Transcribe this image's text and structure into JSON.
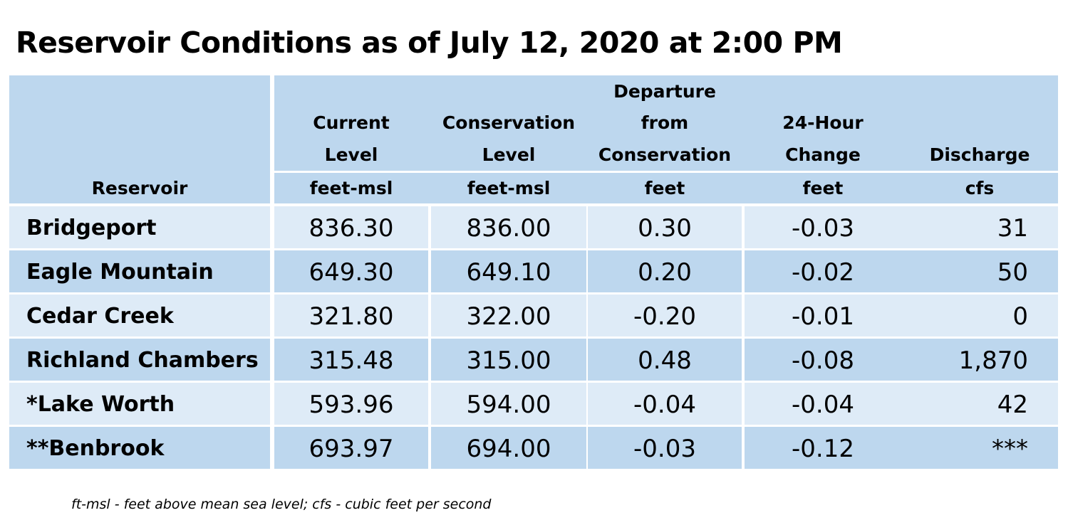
{
  "title": "Reservoir Conditions as of July 12, 2020 at 2:00 PM",
  "table": {
    "headers": [
      {
        "lines": [
          "",
          "",
          "",
          "Reservoir"
        ]
      },
      {
        "lines": [
          "",
          "Current",
          "Level",
          "feet-msl"
        ]
      },
      {
        "lines": [
          "",
          "Conservation",
          "Level",
          "feet-msl"
        ]
      },
      {
        "lines": [
          "Departure",
          "from",
          "Conservation",
          "feet"
        ]
      },
      {
        "lines": [
          "",
          "24-Hour",
          "Change",
          "feet"
        ]
      },
      {
        "lines": [
          "",
          "",
          "Discharge",
          "cfs"
        ]
      }
    ],
    "rows": [
      {
        "name": "Bridgeport",
        "current": "836.30",
        "conservation": "836.00",
        "departure": "0.30",
        "change": "-0.03",
        "discharge": "31"
      },
      {
        "name": "Eagle Mountain",
        "current": "649.30",
        "conservation": "649.10",
        "departure": "0.20",
        "change": "-0.02",
        "discharge": "50"
      },
      {
        "name": "Cedar Creek",
        "current": "321.80",
        "conservation": "322.00",
        "departure": "-0.20",
        "change": "-0.01",
        "discharge": "0"
      },
      {
        "name": "Richland Chambers",
        "current": "315.48",
        "conservation": "315.00",
        "departure": "0.48",
        "change": "-0.08",
        "discharge": "1,870"
      },
      {
        "name": "*Lake Worth",
        "current": "593.96",
        "conservation": "594.00",
        "departure": "-0.04",
        "change": "-0.04",
        "discharge": "42"
      },
      {
        "name": "**Benbrook",
        "current": "693.97",
        "conservation": "694.00",
        "departure": "-0.03",
        "change": "-0.12",
        "discharge": "***"
      }
    ]
  },
  "footnote": "ft-msl - feet above mean sea level; cfs - cubic feet per second"
}
